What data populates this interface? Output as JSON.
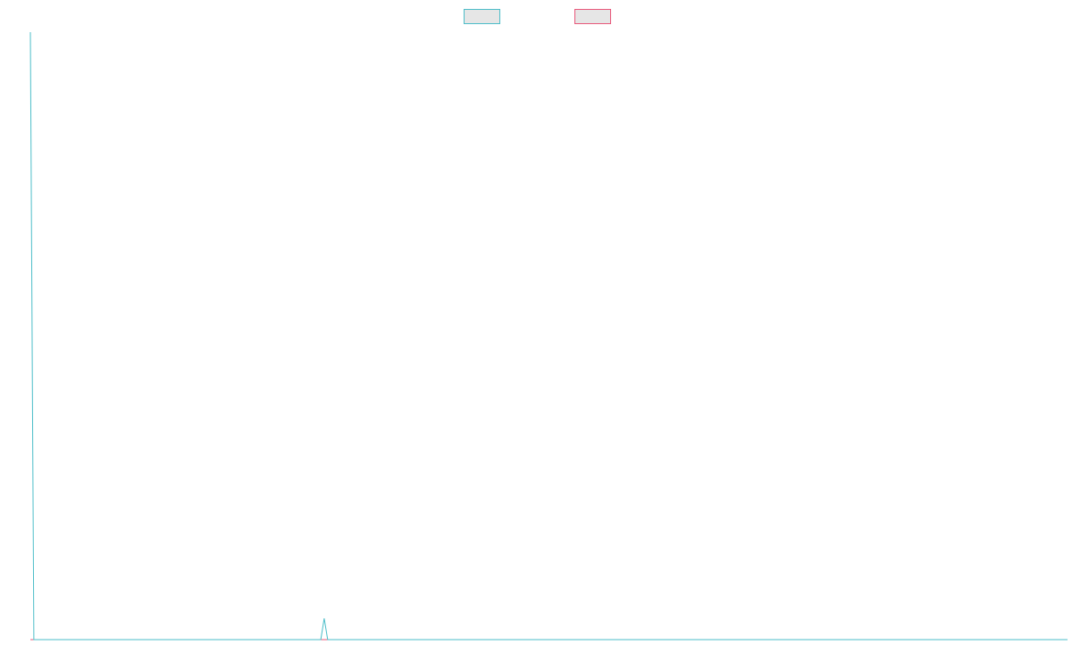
{
  "chart_data": {
    "type": "line",
    "title": "",
    "xlabel": "",
    "ylabel": "",
    "grid": false,
    "legend_position": "top-center",
    "xlim": [
      0,
      300
    ],
    "ylim": [
      0,
      100
    ],
    "series": [
      {
        "color": "#4bbdc8",
        "fill": "#e6e6e6",
        "x": [
          0,
          1,
          2,
          84,
          85,
          86,
          300
        ],
        "y": [
          100,
          0,
          0,
          0,
          3.5,
          0,
          0
        ]
      },
      {
        "color": "#e8577a",
        "fill": "#e6e6e6",
        "x": [
          0,
          300
        ],
        "y": [
          0,
          0
        ]
      }
    ]
  }
}
